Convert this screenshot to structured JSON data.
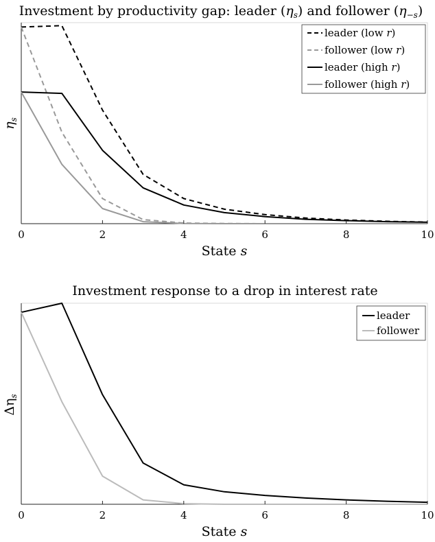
{
  "chart_data": [
    {
      "type": "line",
      "title": "Investment by productivity gap: leader (ηs) and follower (η−s)",
      "title_parts": {
        "pre": "Investment by productivity gap: leader (",
        "sym1": "η",
        "sub1": "s",
        "mid": ") and follower (",
        "sym2": "η",
        "sub2": "−s",
        "post": ")"
      },
      "xlabel": "State",
      "xlabel_var": "s",
      "ylabel": "η",
      "ylabel_sub": "s",
      "xlim": [
        0,
        10
      ],
      "ylim": [
        0,
        1
      ],
      "x_ticks": [
        "0",
        "2",
        "4",
        "6",
        "8",
        "10"
      ],
      "grid": false,
      "legend_position": "top-right",
      "x": [
        0,
        1,
        2,
        3,
        4,
        5,
        6,
        7,
        8,
        9,
        10
      ],
      "series": [
        {
          "name": "leader (low r)",
          "legend_pre": "leader (low ",
          "legend_var": "r",
          "legend_post": ")",
          "color": "#000000",
          "dash": "dashed",
          "values": [
            0.978,
            0.985,
            0.565,
            0.245,
            0.125,
            0.072,
            0.045,
            0.028,
            0.018,
            0.012,
            0.008
          ]
        },
        {
          "name": "follower (low r)",
          "legend_pre": "follower (low ",
          "legend_var": "r",
          "legend_post": ")",
          "color": "#999999",
          "dash": "dashed",
          "values": [
            0.978,
            0.455,
            0.125,
            0.02,
            0.003,
            0.001,
            0.0,
            0.0,
            0.0,
            0.0,
            0.0
          ]
        },
        {
          "name": "leader (high r)",
          "legend_pre": "leader (high ",
          "legend_var": "r",
          "legend_post": ")",
          "color": "#000000",
          "dash": "solid",
          "values": [
            0.655,
            0.648,
            0.365,
            0.178,
            0.093,
            0.055,
            0.035,
            0.022,
            0.015,
            0.01,
            0.007
          ]
        },
        {
          "name": "follower (high r)",
          "legend_pre": "follower (high ",
          "legend_var": "r",
          "legend_post": ")",
          "color": "#999999",
          "dash": "solid",
          "values": [
            0.655,
            0.295,
            0.075,
            0.01,
            0.001,
            0.0,
            0.0,
            0.0,
            0.0,
            0.0,
            0.0
          ]
        }
      ]
    },
    {
      "type": "line",
      "title": "Investment response to a drop in interest rate",
      "xlabel": "State",
      "xlabel_var": "s",
      "ylabel": "Δη",
      "ylabel_sub": "s",
      "xlim": [
        0,
        10
      ],
      "ylim": [
        0,
        1
      ],
      "x_ticks": [
        "0",
        "2",
        "4",
        "6",
        "8",
        "10"
      ],
      "grid": false,
      "legend_position": "top-right",
      "x": [
        0,
        1,
        2,
        3,
        4,
        5,
        6,
        7,
        8,
        9,
        10
      ],
      "series": [
        {
          "name": "leader",
          "legend_pre": "leader",
          "legend_var": "",
          "legend_post": "",
          "color": "#000000",
          "dash": "solid",
          "values": [
            0.955,
            1.0,
            0.545,
            0.205,
            0.097,
            0.062,
            0.044,
            0.031,
            0.022,
            0.015,
            0.01
          ]
        },
        {
          "name": "follower",
          "legend_pre": "follower",
          "legend_var": "",
          "legend_post": "",
          "color": "#bbbbbb",
          "dash": "solid",
          "values": [
            0.955,
            0.51,
            0.14,
            0.022,
            0.003,
            0.0,
            0.0,
            0.0,
            0.0,
            0.0,
            0.0
          ]
        }
      ]
    }
  ]
}
